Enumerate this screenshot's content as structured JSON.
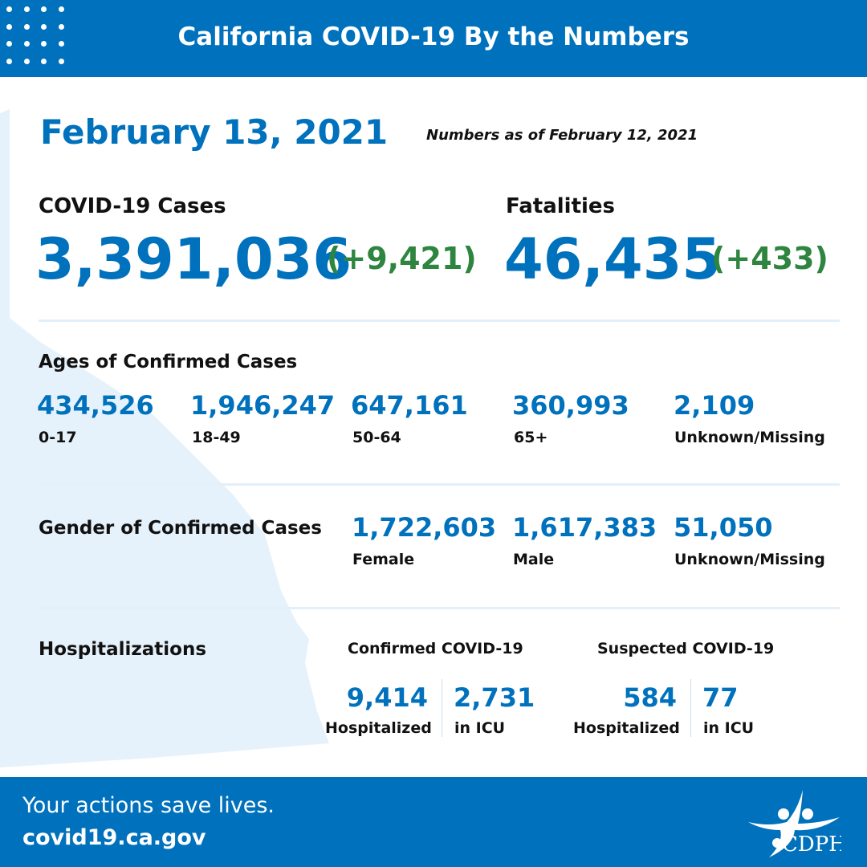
{
  "header": {
    "title": "California COVID-19 By the Numbers"
  },
  "date": "February 13, 2021",
  "as_of": "Numbers as of February 12, 2021",
  "cases": {
    "label": "COVID-19 Cases",
    "total": "3,391,036",
    "change": "(+9,421)"
  },
  "fatalities": {
    "label": "Fatalities",
    "total": "46,435",
    "change": "(+433)"
  },
  "ages": {
    "heading": "Ages of Confirmed Cases",
    "items": [
      {
        "value": "434,526",
        "label": "0-17"
      },
      {
        "value": "1,946,247",
        "label": "18-49"
      },
      {
        "value": "647,161",
        "label": "50-64"
      },
      {
        "value": "360,993",
        "label": "65+"
      },
      {
        "value": "2,109",
        "label": "Unknown/Missing"
      }
    ]
  },
  "gender": {
    "heading": "Gender of Confirmed Cases",
    "items": [
      {
        "value": "1,722,603",
        "label": "Female"
      },
      {
        "value": "1,617,383",
        "label": "Male"
      },
      {
        "value": "51,050",
        "label": "Unknown/Missing"
      }
    ]
  },
  "hosp": {
    "heading": "Hospitalizations",
    "confirmed": {
      "heading": "Confirmed COVID-19",
      "hospitalized": "9,414",
      "hospitalized_label": "Hospitalized",
      "icu": "2,731",
      "icu_label": "in ICU"
    },
    "suspected": {
      "heading": "Suspected COVID-19",
      "hospitalized": "584",
      "hospitalized_label": "Hospitalized",
      "icu": "77",
      "icu_label": "in ICU"
    }
  },
  "footer": {
    "tagline": "Your actions save lives.",
    "url": "covid19.ca.gov",
    "logo_text": "CDPH"
  },
  "colors": {
    "brand_blue": "#0071BC",
    "increase_green": "#2E8540",
    "map_tint": "#E6F2FB"
  }
}
